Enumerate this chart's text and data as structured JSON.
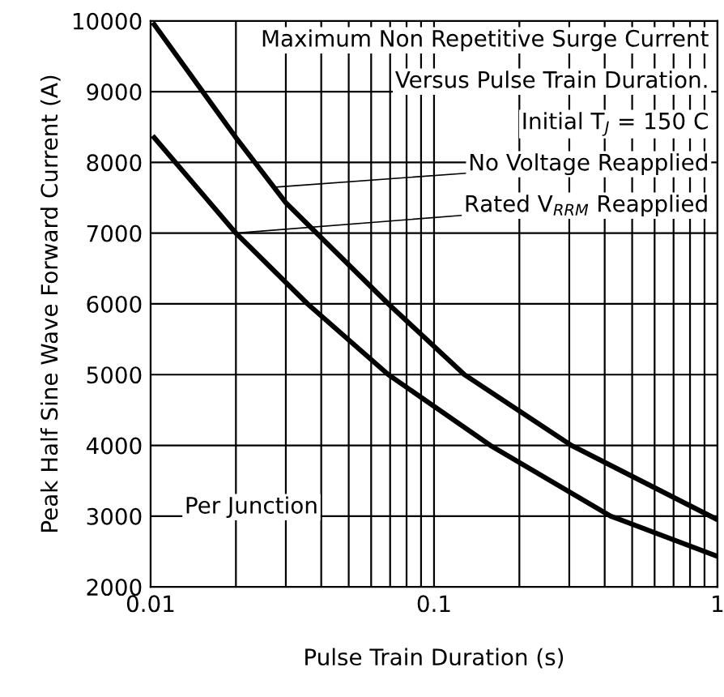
{
  "chart_data": {
    "type": "line",
    "xlabel": "Pulse Train Duration (s)",
    "ylabel": "Peak Half Sine Wave Forward Current (A)",
    "log": "x",
    "xlim": [
      0.01,
      1
    ],
    "ylim": [
      2000,
      10000
    ],
    "xticks": [
      0.01,
      {
        "value": 0.02,
        "label": null
      },
      {
        "value": 0.03,
        "label": null
      },
      {
        "value": 0.04,
        "label": null
      },
      {
        "value": 0.05,
        "label": null
      },
      {
        "value": 0.06,
        "label": null
      },
      {
        "value": 0.07,
        "label": null
      },
      {
        "value": 0.08,
        "label": null
      },
      {
        "value": 0.09,
        "label": null
      },
      0.1,
      {
        "value": 0.2,
        "label": null
      },
      {
        "value": 0.3,
        "label": null
      },
      {
        "value": 0.4,
        "label": null
      },
      {
        "value": 0.5,
        "label": null
      },
      {
        "value": 0.6,
        "label": null
      },
      {
        "value": 0.7,
        "label": null
      },
      {
        "value": 0.8,
        "label": null
      },
      {
        "value": 0.9,
        "label": null
      },
      1
    ],
    "yticks": [
      2000,
      3000,
      4000,
      5000,
      6000,
      7000,
      8000,
      9000,
      10000
    ],
    "grid": true,
    "legend": false,
    "marker": "none",
    "line_style": "solid",
    "series": [
      {
        "color": "#000000",
        "x": [
          0.0103,
          0.02,
          0.03,
          0.069,
          0.128,
          0.305,
          1
        ],
        "values": [
          9950,
          8350,
          7430,
          6000,
          5000,
          4000,
          2950
        ]
      },
      {
        "color": "#000000",
        "x": [
          0.0103,
          0.02,
          0.0358,
          0.069,
          0.158,
          0.42,
          1
        ],
        "values": [
          8350,
          7000,
          6000,
          5000,
          4000,
          3000,
          2430
        ]
      }
    ],
    "annotations": [
      "Maximum Non Repetitive Surge Current",
      "Versus Pulse Train Duration.",
      "Initial T$_{J}$ = 150 C",
      {
        "text": "No Voltage Reapplied",
        "x": 0.0276,
        "y": 7650
      },
      {
        "text": "Rated V$_{RRM}$ Reapplied",
        "x": 0.02,
        "y": 7000
      },
      "Per Junction"
    ]
  }
}
